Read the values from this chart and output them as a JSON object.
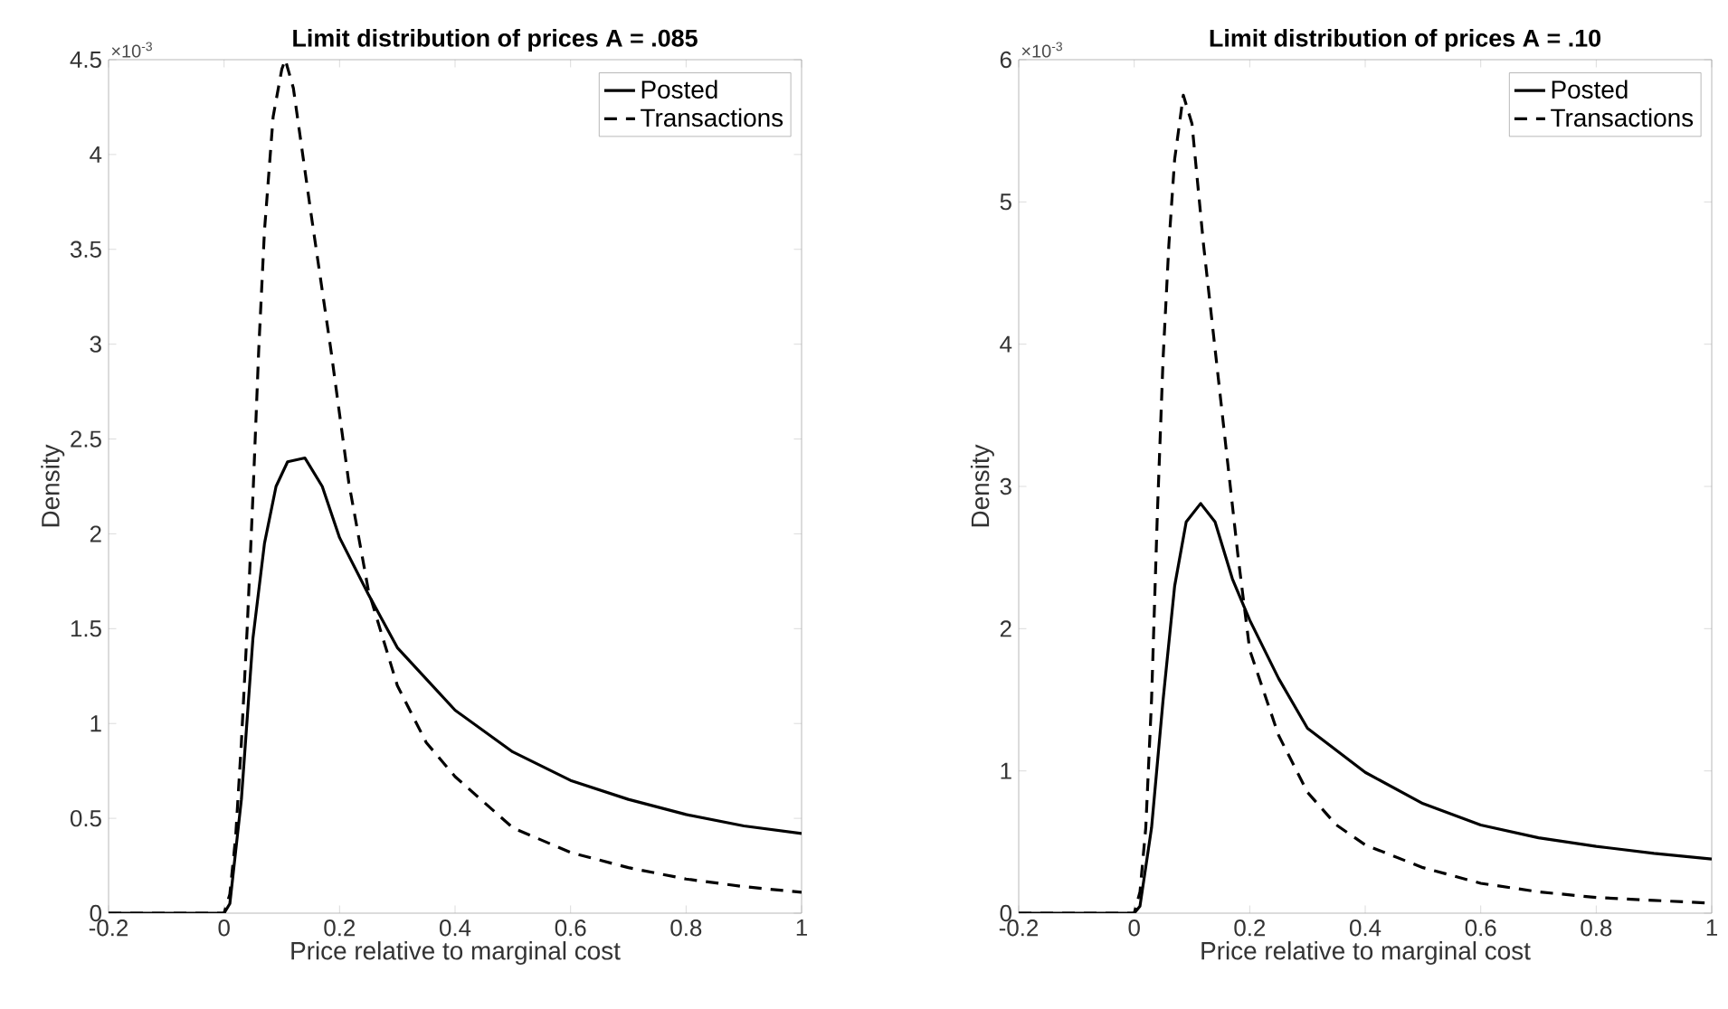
{
  "chart_data": [
    {
      "type": "line",
      "title": "Limit distribution of prices A = .085",
      "xlabel": "Price relative to marginal cost",
      "ylabel": "Density",
      "annotations": [
        "×10$^{-3}$"
      ],
      "xlim": [
        -0.2,
        1
      ],
      "ylim": [
        0,
        4.5
      ],
      "xticks": [
        -0.2,
        0,
        0.2,
        0.4,
        0.6,
        0.8,
        1
      ],
      "yticks": [
        0,
        0.5,
        1,
        1.5,
        2,
        2.5,
        3,
        3.5,
        4,
        4.5
      ],
      "legend": "top right",
      "series": [
        {
          "name": "Posted",
          "color": "#000000",
          "line_style": "solid",
          "x": [
            -0.2,
            0,
            0.01,
            0.03,
            0.05,
            0.07,
            0.09,
            0.11,
            0.14,
            0.17,
            0.2,
            0.25,
            0.3,
            0.4,
            0.5,
            0.6,
            0.7,
            0.8,
            0.9,
            1.0
          ],
          "values": [
            0,
            0,
            0.05,
            0.6,
            1.45,
            1.95,
            2.25,
            2.38,
            2.4,
            2.25,
            1.98,
            1.68,
            1.4,
            1.07,
            0.85,
            0.7,
            0.6,
            0.52,
            0.46,
            0.42
          ]
        },
        {
          "name": "Transactions",
          "color": "#000000",
          "line_style": "dashed",
          "x": [
            -0.2,
            0,
            0.01,
            0.02,
            0.03,
            0.04,
            0.05,
            0.06,
            0.07,
            0.085,
            0.1,
            0.106,
            0.12,
            0.15,
            0.185,
            0.216,
            0.25,
            0.3,
            0.35,
            0.4,
            0.5,
            0.6,
            0.7,
            0.8,
            0.9,
            1.0
          ],
          "values": [
            0,
            0,
            0.1,
            0.4,
            0.9,
            1.5,
            2.2,
            2.97,
            3.6,
            4.2,
            4.45,
            4.5,
            4.35,
            3.7,
            2.97,
            2.27,
            1.7,
            1.2,
            0.9,
            0.72,
            0.45,
            0.32,
            0.24,
            0.18,
            0.14,
            0.11
          ]
        }
      ]
    },
    {
      "type": "line",
      "title": "Limit distribution of prices A = .10",
      "xlabel": "Price relative to marginal cost",
      "ylabel": "Density",
      "annotations": [
        "×10$^{-3}$"
      ],
      "xlim": [
        -0.2,
        1
      ],
      "ylim": [
        0,
        6
      ],
      "xticks": [
        -0.2,
        0,
        0.2,
        0.4,
        0.6,
        0.8,
        1
      ],
      "yticks": [
        0,
        1,
        2,
        3,
        4,
        5,
        6
      ],
      "legend": "top right",
      "series": [
        {
          "name": "Posted",
          "color": "#000000",
          "line_style": "solid",
          "x": [
            -0.2,
            0,
            0.01,
            0.03,
            0.05,
            0.07,
            0.09,
            0.115,
            0.14,
            0.17,
            0.2,
            0.25,
            0.3,
            0.4,
            0.5,
            0.6,
            0.7,
            0.8,
            0.9,
            1.0
          ],
          "values": [
            0,
            0,
            0.05,
            0.6,
            1.5,
            2.3,
            2.75,
            2.88,
            2.75,
            2.35,
            2.06,
            1.65,
            1.3,
            0.99,
            0.77,
            0.62,
            0.53,
            0.47,
            0.42,
            0.38
          ]
        },
        {
          "name": "Transactions",
          "color": "#000000",
          "line_style": "dashed",
          "x": [
            -0.2,
            0,
            0.01,
            0.02,
            0.03,
            0.04,
            0.05,
            0.06,
            0.07,
            0.085,
            0.1,
            0.12,
            0.15,
            0.18,
            0.2,
            0.25,
            0.3,
            0.35,
            0.4,
            0.5,
            0.6,
            0.7,
            0.8,
            0.9,
            1.0
          ],
          "values": [
            0,
            0,
            0.15,
            0.6,
            1.5,
            2.8,
            3.9,
            4.7,
            5.3,
            5.75,
            5.55,
            4.7,
            3.6,
            2.5,
            1.85,
            1.25,
            0.85,
            0.62,
            0.48,
            0.32,
            0.21,
            0.15,
            0.11,
            0.09,
            0.07
          ]
        }
      ]
    }
  ]
}
